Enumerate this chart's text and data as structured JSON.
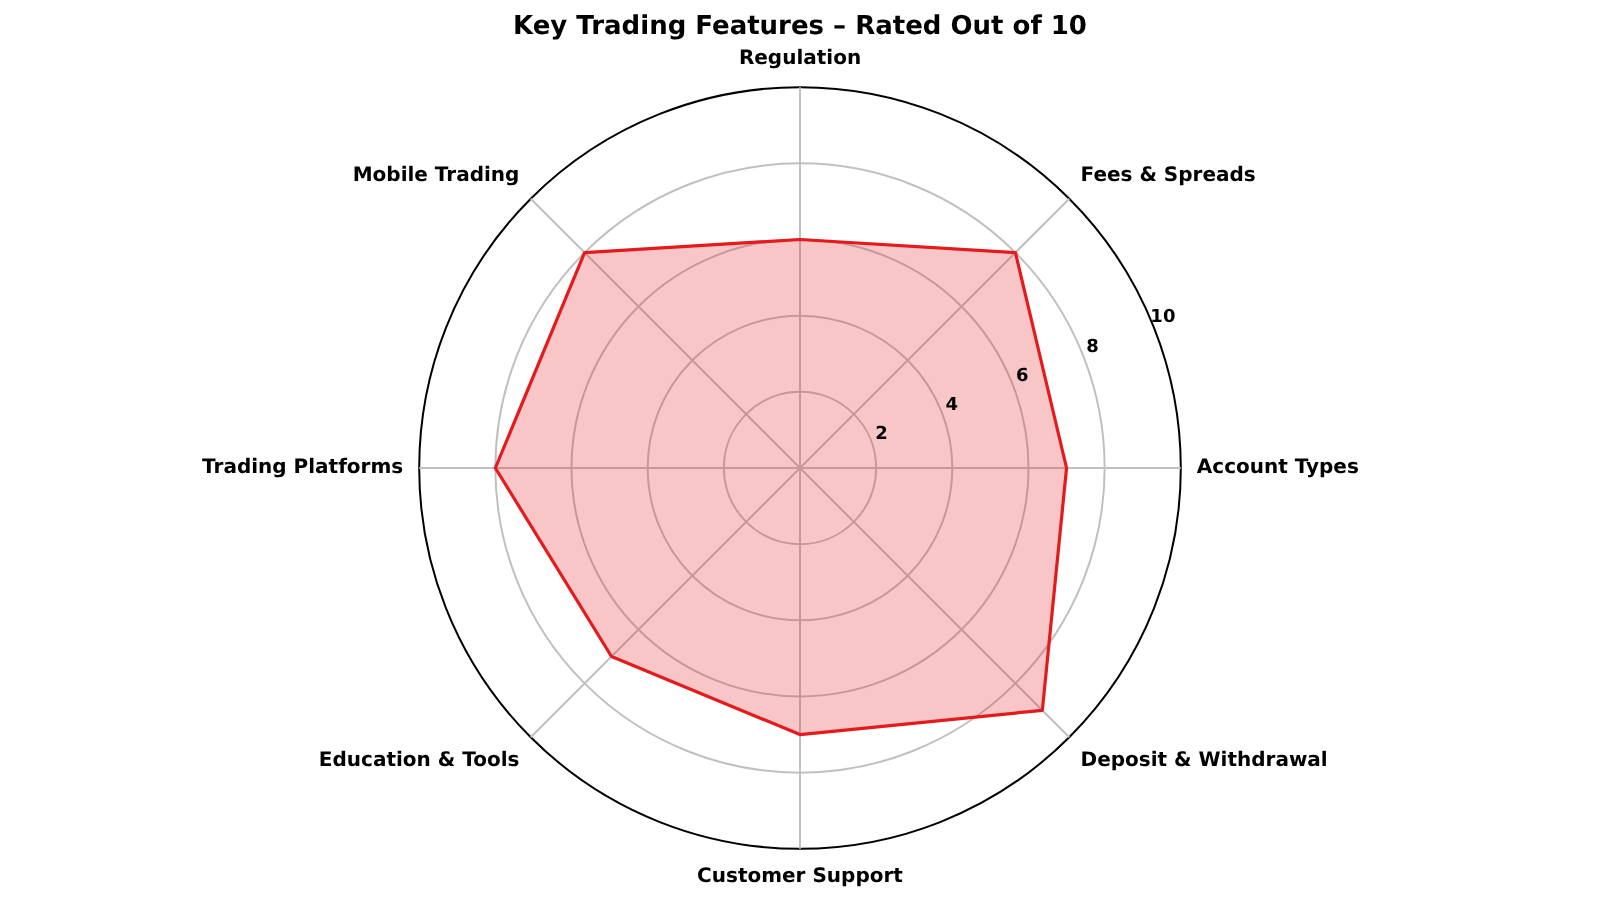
{
  "chart_data": {
    "type": "radar",
    "title": "Key Trading Features – Rated Out of 10",
    "categories": [
      "Regulation",
      "Fees & Spreads",
      "Account Types",
      "Deposit & Withdrawal",
      "Customer Support",
      "Education & Tools",
      "Trading Platforms",
      "Mobile Trading"
    ],
    "values": [
      6,
      8,
      7,
      9,
      7,
      7,
      8,
      8
    ],
    "color": "#e41a1c",
    "ylim": [
      0,
      10
    ],
    "yticks": [
      2,
      4,
      6,
      8,
      10
    ],
    "grid": true,
    "legend": false,
    "marker": "none"
  }
}
